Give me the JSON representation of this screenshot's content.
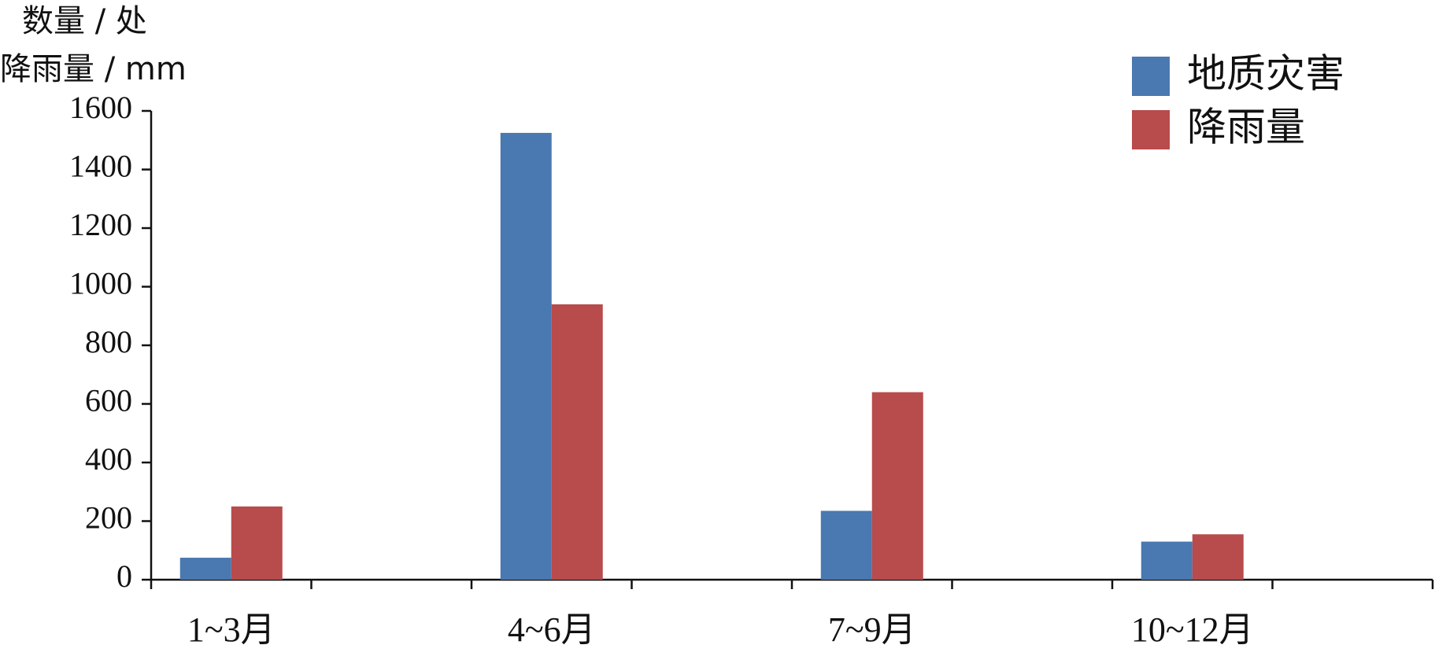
{
  "chart_data": {
    "type": "bar",
    "ylabel": [
      "数量 / 处",
      "降雨量 / mm"
    ],
    "categories": [
      "1~3月",
      "4~6月",
      "7~9月",
      "10~12月"
    ],
    "series": [
      {
        "name": "地质灾害",
        "color": "#4a78b0",
        "values": [
          75,
          1525,
          235,
          130
        ]
      },
      {
        "name": "降雨量",
        "color": "#b84b4b",
        "values": [
          250,
          940,
          640,
          155
        ]
      }
    ],
    "ylim": [
      0,
      1600
    ],
    "yticks": [
      0,
      200,
      400,
      600,
      800,
      1000,
      1200,
      1400,
      1600
    ],
    "legend": "upper-right"
  }
}
